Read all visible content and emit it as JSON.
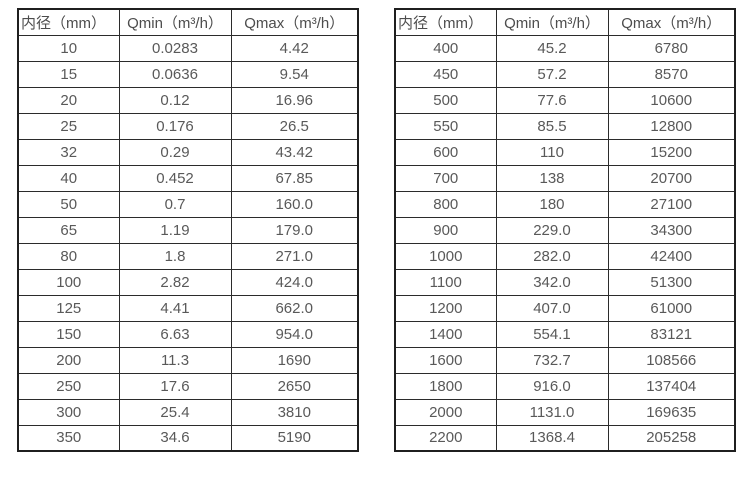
{
  "page": {
    "background": "#ffffff",
    "border_color_outer": "#1f1f1f",
    "border_color_inner": "#2b2b2b",
    "text_color": "#595959",
    "header_text_color": "#4d4d4d"
  },
  "chart_data": [
    {
      "type": "table",
      "columns": [
        "内径（mm）",
        "Qmin（m³/h）",
        "Qmax（m³/h）"
      ],
      "rows": [
        [
          "10",
          "0.0283",
          "4.42"
        ],
        [
          "15",
          "0.0636",
          "9.54"
        ],
        [
          "20",
          "0.12",
          "16.96"
        ],
        [
          "25",
          "0.176",
          "26.5"
        ],
        [
          "32",
          "0.29",
          "43.42"
        ],
        [
          "40",
          "0.452",
          "67.85"
        ],
        [
          "50",
          "0.7",
          "160.0"
        ],
        [
          "65",
          "1.19",
          "179.0"
        ],
        [
          "80",
          "1.8",
          "271.0"
        ],
        [
          "100",
          "2.82",
          "424.0"
        ],
        [
          "125",
          "4.41",
          "662.0"
        ],
        [
          "150",
          "6.63",
          "954.0"
        ],
        [
          "200",
          "11.3",
          "1690"
        ],
        [
          "250",
          "17.6",
          "2650"
        ],
        [
          "300",
          "25.4",
          "3810"
        ],
        [
          "350",
          "34.6",
          "5190"
        ]
      ]
    },
    {
      "type": "table",
      "columns": [
        "内径（mm）",
        "Qmin（m³/h）",
        "Qmax（m³/h）"
      ],
      "rows": [
        [
          "400",
          "45.2",
          "6780"
        ],
        [
          "450",
          "57.2",
          "8570"
        ],
        [
          "500",
          "77.6",
          "10600"
        ],
        [
          "550",
          "85.5",
          "12800"
        ],
        [
          "600",
          "110",
          "15200"
        ],
        [
          "700",
          "138",
          "20700"
        ],
        [
          "800",
          "180",
          "27100"
        ],
        [
          "900",
          "229.0",
          "34300"
        ],
        [
          "1000",
          "282.0",
          "42400"
        ],
        [
          "1100",
          "342.0",
          "51300"
        ],
        [
          "1200",
          "407.0",
          "61000"
        ],
        [
          "1400",
          "554.1",
          "83121"
        ],
        [
          "1600",
          "732.7",
          "108566"
        ],
        [
          "1800",
          "916.0",
          "137404"
        ],
        [
          "2000",
          "1131.0",
          "169635"
        ],
        [
          "2200",
          "1368.4",
          "205258"
        ]
      ]
    }
  ]
}
